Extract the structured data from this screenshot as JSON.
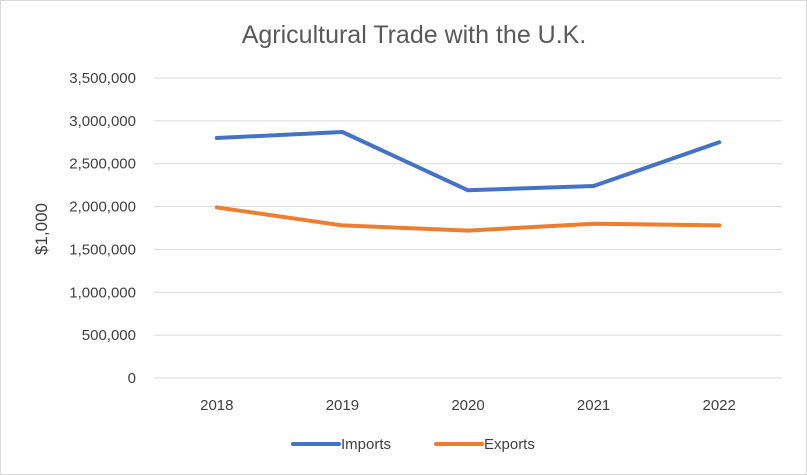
{
  "chart_data": {
    "type": "line",
    "title": "Agricultural Trade with the U.K.",
    "ylabel": "$1,000",
    "xlabel": "",
    "categories": [
      "2018",
      "2019",
      "2020",
      "2021",
      "2022"
    ],
    "ylim": [
      0,
      3500000
    ],
    "yticks": [
      0,
      500000,
      1000000,
      1500000,
      2000000,
      2500000,
      3000000,
      3500000
    ],
    "ytick_labels": [
      "0",
      "500,000",
      "1,000,000",
      "1,500,000",
      "2,000,000",
      "2,500,000",
      "3,000,000",
      "3,500,000"
    ],
    "grid": true,
    "legend_position": "bottom",
    "series": [
      {
        "name": "Imports",
        "color": "#4472c4",
        "values": [
          2800000,
          2870000,
          2190000,
          2240000,
          2750000
        ]
      },
      {
        "name": "Exports",
        "color": "#ed7d31",
        "values": [
          1990000,
          1780000,
          1720000,
          1800000,
          1780000
        ]
      }
    ]
  }
}
